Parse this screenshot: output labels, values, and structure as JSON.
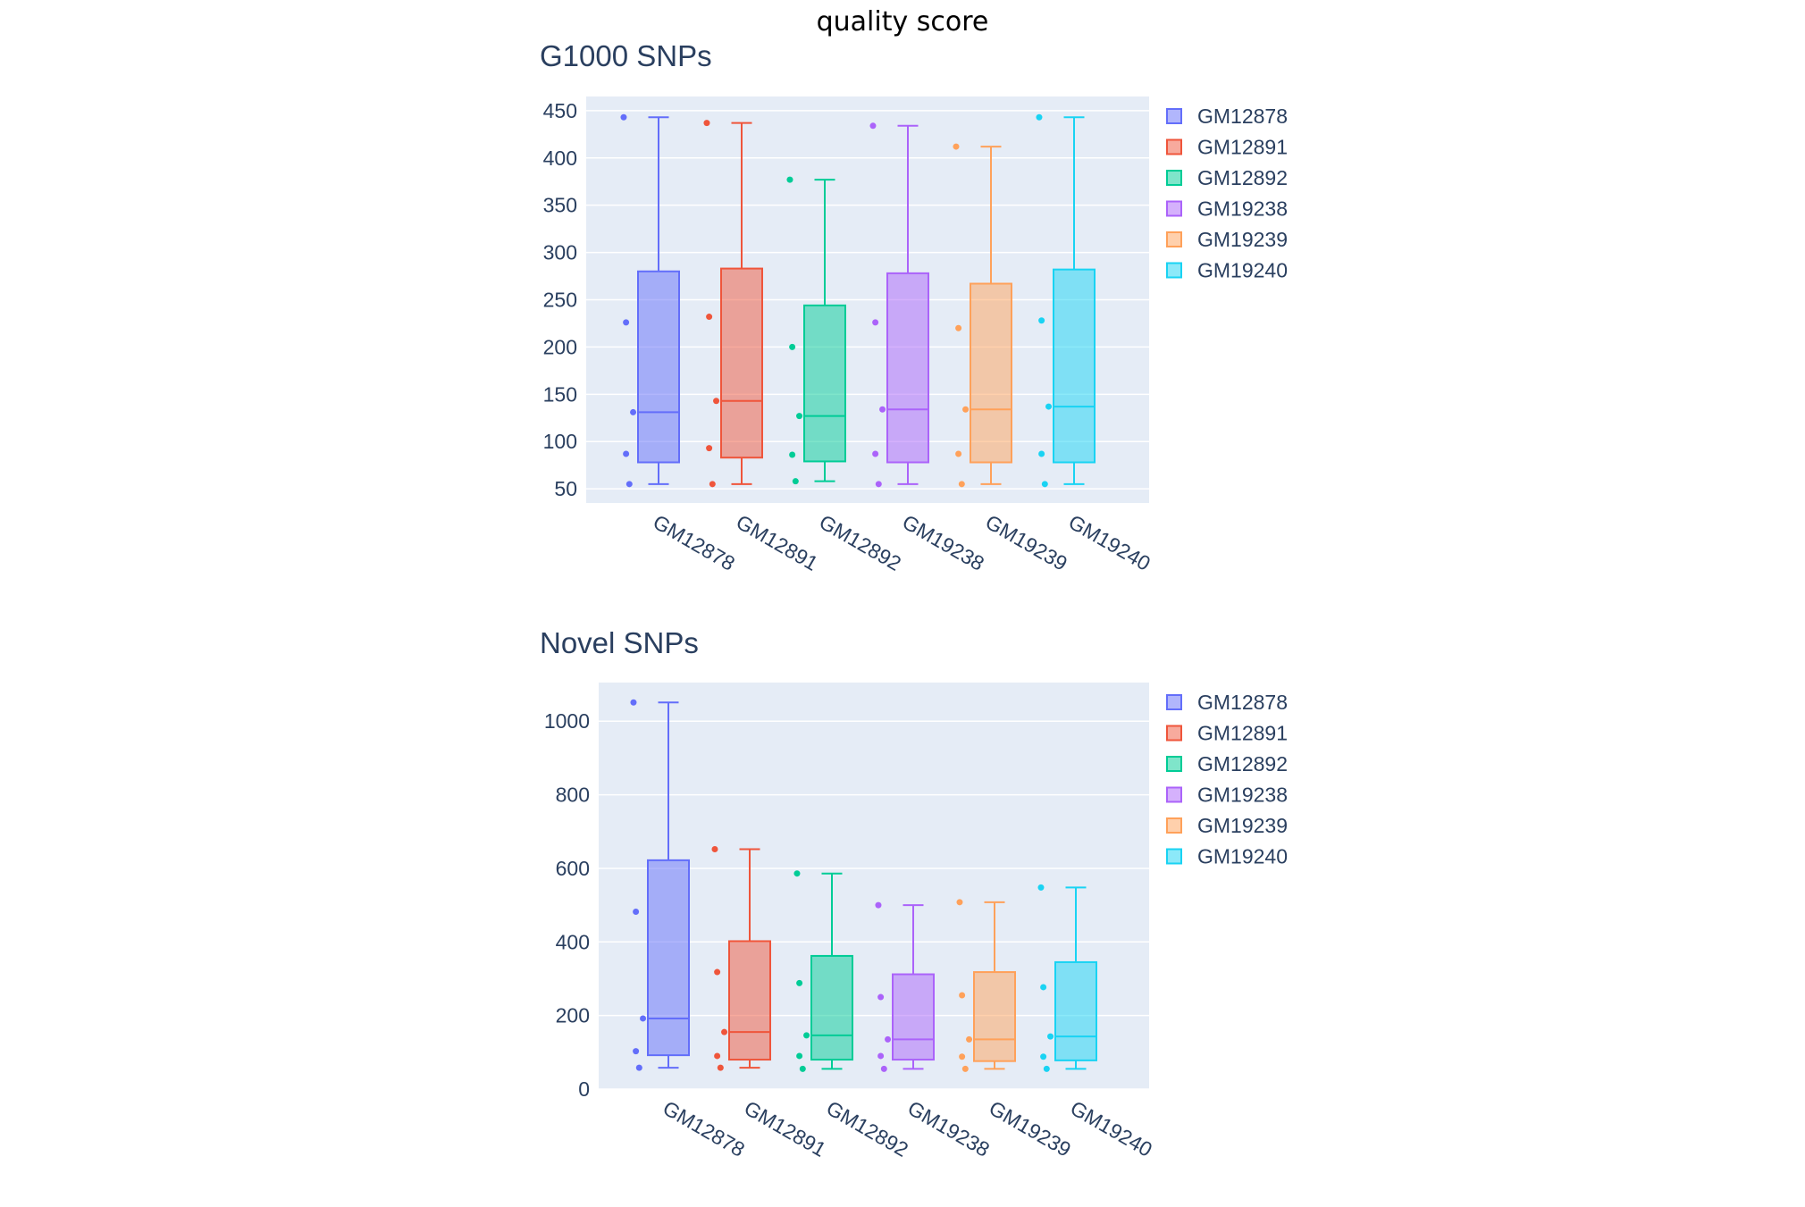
{
  "figure": {
    "title": "quality score"
  },
  "legend_position": "top-right of each panel",
  "chart_data": [
    {
      "type": "box",
      "title": "G1000 SNPs",
      "ylim": [
        35,
        465
      ],
      "yticks": [
        50,
        100,
        150,
        200,
        250,
        300,
        350,
        400,
        450
      ],
      "categories": [
        "GM12878",
        "GM12891",
        "GM12892",
        "GM19238",
        "GM19239",
        "GM19240"
      ],
      "series": [
        {
          "name": "GM12878",
          "color": "#636efa",
          "min": 55,
          "q1": 78,
          "median": 131,
          "q3": 280,
          "max": 443,
          "points": [
            443,
            226,
            131,
            87,
            55
          ]
        },
        {
          "name": "GM12891",
          "color": "#ef553b",
          "min": 55,
          "q1": 83,
          "median": 143,
          "q3": 283,
          "max": 437,
          "points": [
            437,
            232,
            143,
            93,
            55
          ]
        },
        {
          "name": "GM12892",
          "color": "#00cc96",
          "min": 58,
          "q1": 79,
          "median": 127,
          "q3": 244,
          "max": 377,
          "points": [
            377,
            200,
            127,
            86,
            58
          ]
        },
        {
          "name": "GM19238",
          "color": "#ab63fa",
          "min": 55,
          "q1": 78,
          "median": 134,
          "q3": 278,
          "max": 434,
          "points": [
            434,
            226,
            134,
            87,
            55
          ]
        },
        {
          "name": "GM19239",
          "color": "#ffa15a",
          "min": 55,
          "q1": 78,
          "median": 134,
          "q3": 267,
          "max": 412,
          "points": [
            412,
            220,
            134,
            87,
            55
          ]
        },
        {
          "name": "GM19240",
          "color": "#19d3f3",
          "min": 55,
          "q1": 78,
          "median": 137,
          "q3": 282,
          "max": 443,
          "points": [
            443,
            228,
            137,
            87,
            55
          ]
        }
      ]
    },
    {
      "type": "box",
      "title": "Novel SNPs",
      "ylim": [
        0,
        1105
      ],
      "yticks": [
        0,
        200,
        400,
        600,
        800,
        1000
      ],
      "categories": [
        "GM12878",
        "GM12891",
        "GM12892",
        "GM19238",
        "GM19239",
        "GM19240"
      ],
      "series": [
        {
          "name": "GM12878",
          "color": "#636efa",
          "min": 58,
          "q1": 92,
          "median": 192,
          "q3": 622,
          "max": 1051,
          "points": [
            1051,
            482,
            192,
            103,
            58
          ]
        },
        {
          "name": "GM12891",
          "color": "#ef553b",
          "min": 58,
          "q1": 80,
          "median": 155,
          "q3": 402,
          "max": 652,
          "points": [
            652,
            318,
            155,
            90,
            58
          ]
        },
        {
          "name": "GM12892",
          "color": "#00cc96",
          "min": 55,
          "q1": 80,
          "median": 146,
          "q3": 362,
          "max": 586,
          "points": [
            586,
            288,
            146,
            90,
            55
          ]
        },
        {
          "name": "GM19238",
          "color": "#ab63fa",
          "min": 55,
          "q1": 80,
          "median": 135,
          "q3": 312,
          "max": 500,
          "points": [
            500,
            250,
            135,
            90,
            55
          ]
        },
        {
          "name": "GM19239",
          "color": "#ffa15a",
          "min": 55,
          "q1": 76,
          "median": 135,
          "q3": 318,
          "max": 508,
          "points": [
            508,
            255,
            135,
            88,
            55
          ]
        },
        {
          "name": "GM19240",
          "color": "#19d3f3",
          "min": 55,
          "q1": 78,
          "median": 143,
          "q3": 345,
          "max": 548,
          "points": [
            548,
            277,
            143,
            88,
            55
          ]
        }
      ]
    }
  ]
}
